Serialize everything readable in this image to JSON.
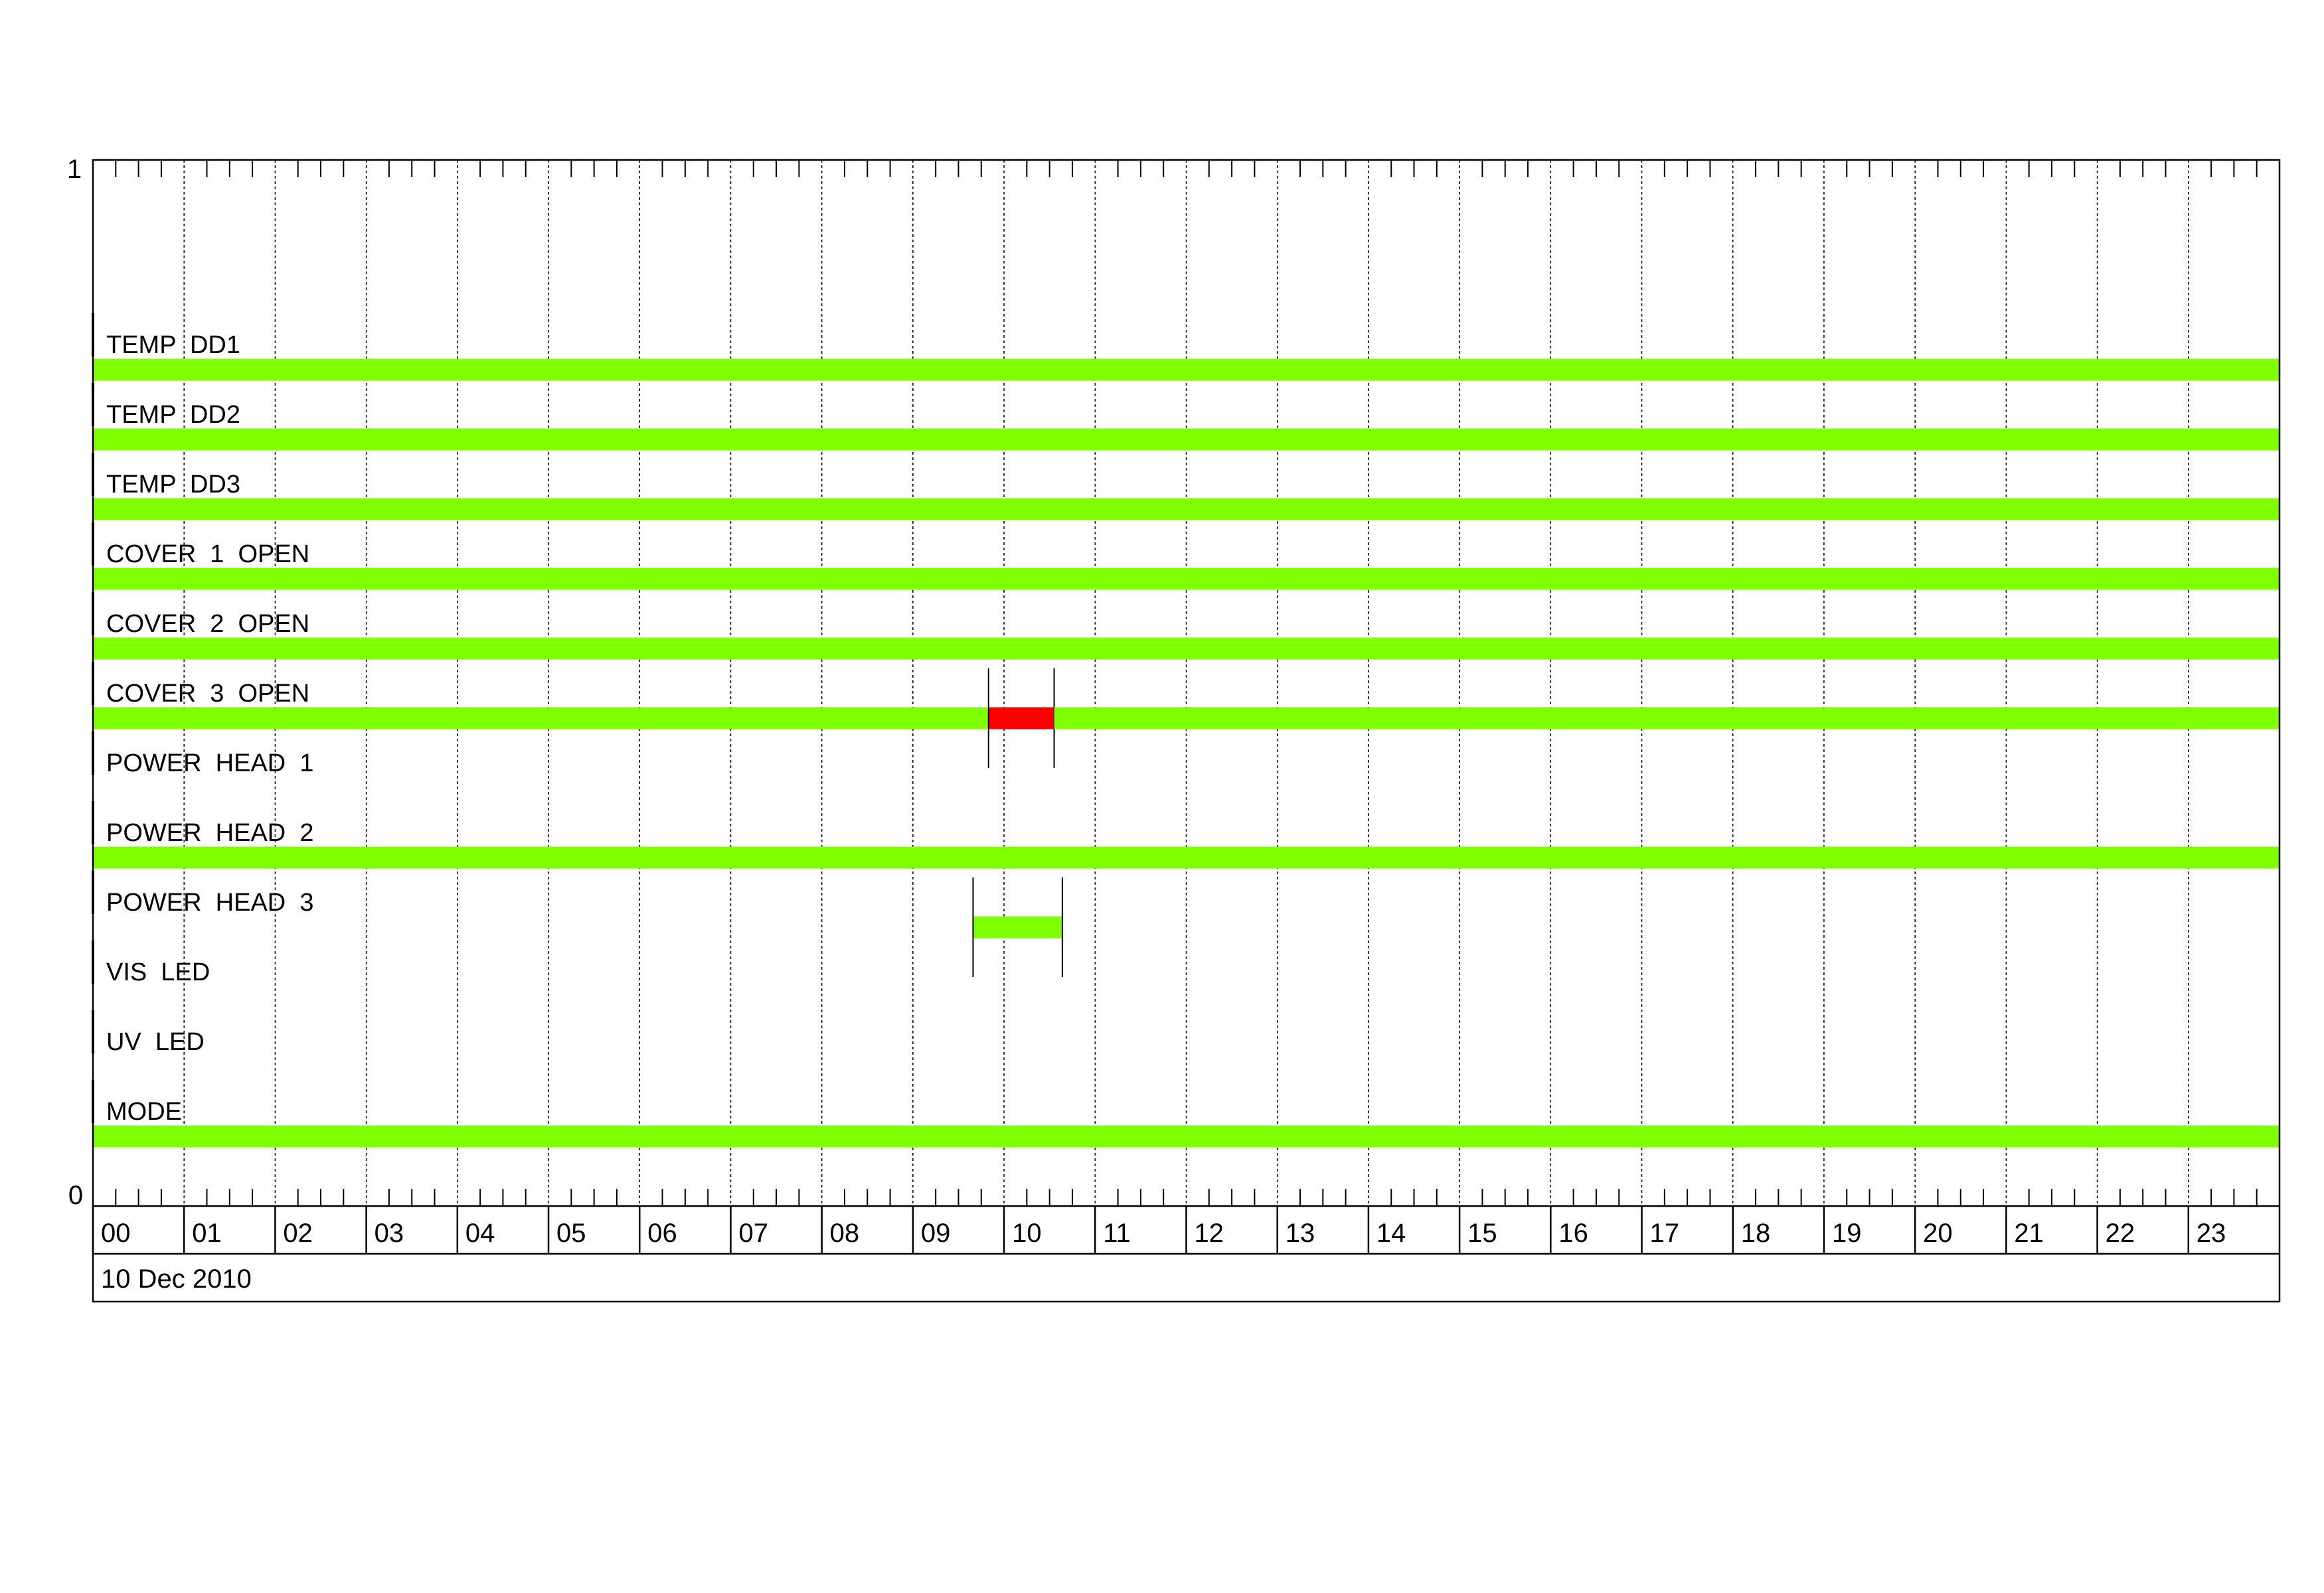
{
  "chart_data": {
    "type": "timeline",
    "title": "",
    "date_label": "10 Dec 2010",
    "y_axis": {
      "top_label": "1",
      "bottom_label": "0"
    },
    "x_axis": {
      "unit": "hour",
      "range": [
        0,
        24
      ],
      "tick_labels": [
        "00",
        "01",
        "02",
        "03",
        "04",
        "05",
        "06",
        "07",
        "08",
        "09",
        "10",
        "11",
        "12",
        "13",
        "14",
        "15",
        "16",
        "17",
        "18",
        "19",
        "20",
        "21",
        "22",
        "23"
      ],
      "minor_ticks_per_hour": 4,
      "grid": true
    },
    "colors": {
      "ok": "#7fff00",
      "alarm": "#ff0000"
    },
    "rows": [
      {
        "label": "TEMP  DD1",
        "segments": [
          {
            "start": 0,
            "end": 24,
            "state": "ok"
          }
        ]
      },
      {
        "label": "TEMP  DD2",
        "segments": [
          {
            "start": 0,
            "end": 24,
            "state": "ok"
          }
        ]
      },
      {
        "label": "TEMP  DD3",
        "segments": [
          {
            "start": 0,
            "end": 24,
            "state": "ok"
          }
        ]
      },
      {
        "label": "COVER  1  OPEN",
        "segments": [
          {
            "start": 0,
            "end": 24,
            "state": "ok"
          }
        ]
      },
      {
        "label": "COVER  2  OPEN",
        "segments": [
          {
            "start": 0,
            "end": 24,
            "state": "ok"
          }
        ]
      },
      {
        "label": "COVER  3  OPEN",
        "segments": [
          {
            "start": 0,
            "end": 9.83,
            "state": "ok"
          },
          {
            "start": 9.83,
            "end": 10.55,
            "state": "alarm",
            "marked": true
          },
          {
            "start": 10.55,
            "end": 24,
            "state": "ok"
          }
        ]
      },
      {
        "label": "POWER  HEAD  1",
        "segments": []
      },
      {
        "label": "POWER  HEAD  2",
        "segments": [
          {
            "start": 0,
            "end": 24,
            "state": "ok"
          }
        ]
      },
      {
        "label": "POWER  HEAD  3",
        "segments": [
          {
            "start": 9.66,
            "end": 10.64,
            "state": "ok",
            "marked": true
          }
        ]
      },
      {
        "label": "VIS  LED",
        "segments": []
      },
      {
        "label": "UV  LED",
        "segments": []
      },
      {
        "label": "MODE",
        "segments": [
          {
            "start": 0,
            "end": 24,
            "state": "ok"
          }
        ]
      }
    ]
  }
}
